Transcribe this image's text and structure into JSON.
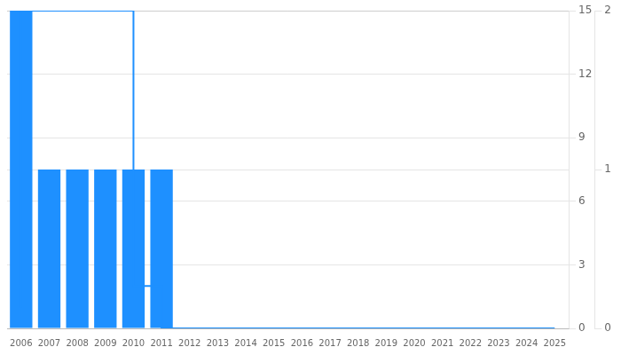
{
  "chart_data": {
    "type": "bar",
    "x": [
      2006,
      2007,
      2008,
      2009,
      2010,
      2011,
      2012,
      2013,
      2014,
      2015,
      2016,
      2017,
      2018,
      2019,
      2020,
      2021,
      2022,
      2023,
      2024,
      2025
    ],
    "xlim": [
      2005.5,
      2025.5
    ],
    "xticks": [
      2006,
      2007,
      2008,
      2009,
      2010,
      2011,
      2012,
      2013,
      2014,
      2015,
      2016,
      2017,
      2018,
      2019,
      2020,
      2021,
      2022,
      2023,
      2024,
      2025
    ],
    "ylim": [
      0,
      15
    ],
    "yticks": [
      0,
      3,
      6,
      9,
      12,
      15
    ],
    "y2lim": [
      0,
      2
    ],
    "y2ticks": [
      0,
      1,
      2
    ],
    "grid": true,
    "series": [
      {
        "type": "line",
        "line_style": "steps",
        "color": "#1e90ff",
        "values": [
          1,
          15,
          15,
          15,
          15,
          2,
          0,
          0,
          0,
          0,
          0,
          0,
          0,
          0,
          0,
          0,
          0,
          0,
          0,
          0
        ]
      },
      {
        "type": "bar",
        "axis": "y2",
        "color": "#1e90ff",
        "values": [
          2,
          1,
          1,
          1,
          1,
          1,
          0,
          0,
          0,
          0,
          0,
          0,
          0,
          0,
          0,
          0,
          0,
          0,
          0,
          0
        ]
      }
    ]
  }
}
